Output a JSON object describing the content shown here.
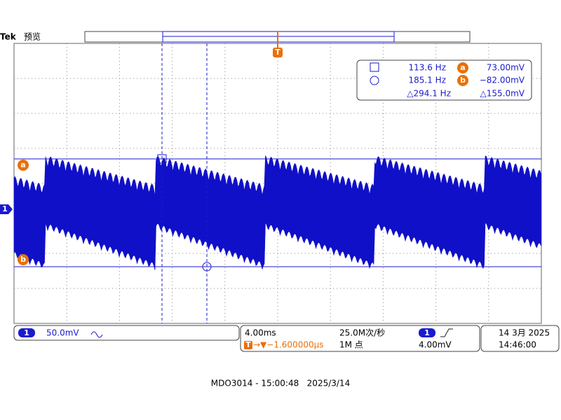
{
  "header": {
    "brand": "Tek",
    "mode": "预览"
  },
  "markers": {
    "trigger": "T",
    "channel": "1",
    "cursor_a": "a",
    "cursor_b": "b"
  },
  "readout": {
    "rows": [
      [
        "113.6 Hz",
        "73.00mV"
      ],
      [
        "185.1 Hz",
        "−82.00mV"
      ],
      [
        "△294.1 Hz",
        "△155.0mV"
      ]
    ],
    "labels": [
      "a",
      "b"
    ]
  },
  "channel": {
    "number": "1",
    "scale": "50.0mV"
  },
  "timebase": {
    "scale": "4.00ms",
    "rate": "25.0M次/秒",
    "trigger_marker": "T",
    "position": "→▼−1.600000µs",
    "record": "1M 点"
  },
  "trigger": {
    "source": "1",
    "level": "4.00mV"
  },
  "datetime": {
    "date": "14 3月 2025",
    "time": "14:46:00"
  },
  "footer": "MDO3014 - 15:00:48   2025/3/14"
}
